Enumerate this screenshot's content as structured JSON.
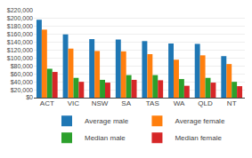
{
  "chart_data": {
    "type": "bar",
    "categories": [
      "ACT",
      "VIC",
      "NSW",
      "SA",
      "TAS",
      "WA",
      "QLD",
      "NT"
    ],
    "series": [
      {
        "name": "Average male",
        "values": [
          197000,
          160000,
          148000,
          147000,
          143000,
          137000,
          136000,
          105000
        ]
      },
      {
        "name": "Average female",
        "values": [
          172000,
          124000,
          118000,
          117000,
          110000,
          96000,
          107000,
          85000
        ]
      },
      {
        "name": "Median male",
        "values": [
          73000,
          50000,
          45000,
          57000,
          57000,
          47000,
          50000,
          40000
        ]
      },
      {
        "name": "Median female",
        "values": [
          65000,
          40000,
          38000,
          45000,
          44000,
          30000,
          38000,
          29000
        ]
      }
    ],
    "ylim": [
      0,
      220000
    ],
    "yticks": [
      {
        "value": 0,
        "label": "$0"
      },
      {
        "value": 20000,
        "label": "$20,000"
      },
      {
        "value": 40000,
        "label": "$40,000"
      },
      {
        "value": 60000,
        "label": "$60,000"
      },
      {
        "value": 80000,
        "label": "$80,000"
      },
      {
        "value": 100000,
        "label": "$100,000"
      },
      {
        "value": 120000,
        "label": "$120,000"
      },
      {
        "value": 140000,
        "label": "$140,000"
      },
      {
        "value": 160000,
        "label": "$160,000"
      },
      {
        "value": 180000,
        "label": "$180,000"
      },
      {
        "value": 200000,
        "label": "$200,000"
      },
      {
        "value": 220000,
        "label": "$220,000"
      }
    ],
    "grid": true,
    "legend": "bottom"
  }
}
